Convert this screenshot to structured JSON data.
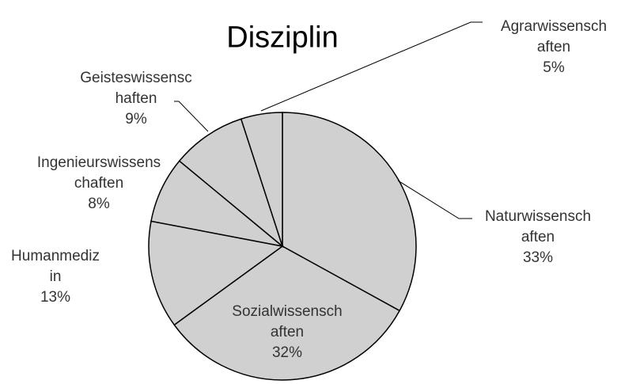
{
  "chart_data": {
    "type": "pie",
    "title": "Disziplin",
    "categories": [
      "Naturwissenschaften",
      "Sozialwissenschaften",
      "Humanmedizin",
      "Ingenieurswissenschaften",
      "Geisteswissenschaften",
      "Agrarwissenschaften"
    ],
    "values": [
      33,
      32,
      13,
      8,
      9,
      5
    ],
    "value_labels": [
      "33%",
      "32%",
      "13%",
      "8%",
      "9%",
      "5%"
    ],
    "color": "#d0d0d0"
  }
}
